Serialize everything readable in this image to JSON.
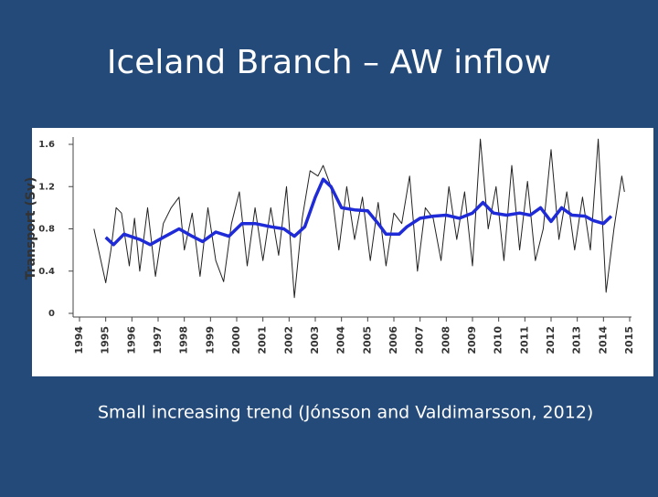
{
  "slide": {
    "title": "Iceland Branch – AW inflow",
    "caption": "Small increasing trend (Jónsson and Valdimarsson, 2012)"
  },
  "chart_data": {
    "type": "line",
    "ylabel": "Transport (Sv)",
    "xlim": [
      1994,
      2015
    ],
    "xticks": [
      1994,
      1995,
      1996,
      1997,
      1998,
      1999,
      2000,
      2001,
      2002,
      2003,
      2004,
      2005,
      2006,
      2007,
      2008,
      2009,
      2010,
      2011,
      2012,
      2013,
      2014,
      2015
    ],
    "ylim": [
      0,
      1.6
    ],
    "yticks": [
      0,
      0.4,
      0.8,
      1.2,
      1.6
    ],
    "series": [
      {
        "color": "#222222",
        "width": 1,
        "x": [
          1994.55,
          1995.0,
          1995.2,
          1995.4,
          1995.6,
          1995.9,
          1996.1,
          1996.3,
          1996.6,
          1996.9,
          1997.2,
          1997.5,
          1997.8,
          1998.0,
          1998.3,
          1998.6,
          1998.9,
          1999.2,
          1999.5,
          1999.8,
          2000.1,
          2000.4,
          2000.7,
          2001.0,
          2001.3,
          2001.6,
          2001.9,
          2002.2,
          2002.5,
          2002.8,
          2003.1,
          2003.3,
          2003.6,
          2003.9,
          2004.2,
          2004.5,
          2004.8,
          2005.1,
          2005.4,
          2005.7,
          2006.0,
          2006.3,
          2006.6,
          2006.9,
          2007.2,
          2007.5,
          2007.8,
          2008.1,
          2008.4,
          2008.7,
          2009.0,
          2009.3,
          2009.6,
          2009.9,
          2010.2,
          2010.5,
          2010.8,
          2011.1,
          2011.4,
          2011.7,
          2012.0,
          2012.3,
          2012.6,
          2012.9,
          2013.2,
          2013.5,
          2013.8,
          2014.1,
          2014.4,
          2014.7,
          2014.8
        ],
        "values": [
          0.8,
          0.29,
          0.6,
          1.0,
          0.95,
          0.45,
          0.9,
          0.4,
          1.0,
          0.35,
          0.85,
          1.0,
          1.1,
          0.6,
          0.95,
          0.35,
          1.0,
          0.5,
          0.3,
          0.85,
          1.15,
          0.45,
          1.0,
          0.5,
          1.0,
          0.55,
          1.2,
          0.15,
          0.9,
          1.35,
          1.3,
          1.4,
          1.2,
          0.6,
          1.2,
          0.7,
          1.1,
          0.5,
          1.05,
          0.45,
          0.95,
          0.85,
          1.3,
          0.4,
          1.0,
          0.9,
          0.5,
          1.2,
          0.7,
          1.15,
          0.45,
          1.65,
          0.8,
          1.2,
          0.5,
          1.4,
          0.6,
          1.25,
          0.5,
          0.8,
          1.55,
          0.7,
          1.15,
          0.6,
          1.1,
          0.6,
          1.65,
          0.2,
          0.8,
          1.3,
          1.15
        ]
      },
      {
        "color": "#1f2bd6",
        "width": 3.5,
        "x": [
          1995.0,
          1995.3,
          1995.7,
          1996.3,
          1996.7,
          1997.2,
          1997.8,
          1998.3,
          1998.7,
          1999.2,
          1999.7,
          2000.2,
          2000.7,
          2001.3,
          2001.8,
          2002.2,
          2002.6,
          2003.0,
          2003.3,
          2003.6,
          2004.0,
          2004.5,
          2005.0,
          2005.4,
          2005.7,
          2006.2,
          2006.5,
          2007.0,
          2007.5,
          2008.0,
          2008.5,
          2009.0,
          2009.4,
          2009.8,
          2010.3,
          2010.8,
          2011.2,
          2011.6,
          2012.0,
          2012.4,
          2012.8,
          2013.3,
          2013.6,
          2014.0,
          2014.3
        ],
        "values": [
          0.72,
          0.65,
          0.75,
          0.7,
          0.65,
          0.72,
          0.8,
          0.73,
          0.68,
          0.77,
          0.73,
          0.85,
          0.85,
          0.82,
          0.8,
          0.73,
          0.82,
          1.1,
          1.27,
          1.2,
          1.0,
          0.98,
          0.97,
          0.85,
          0.75,
          0.75,
          0.82,
          0.9,
          0.92,
          0.93,
          0.9,
          0.95,
          1.05,
          0.95,
          0.93,
          0.95,
          0.93,
          1.0,
          0.87,
          1.0,
          0.93,
          0.92,
          0.88,
          0.85,
          0.92
        ]
      }
    ]
  }
}
